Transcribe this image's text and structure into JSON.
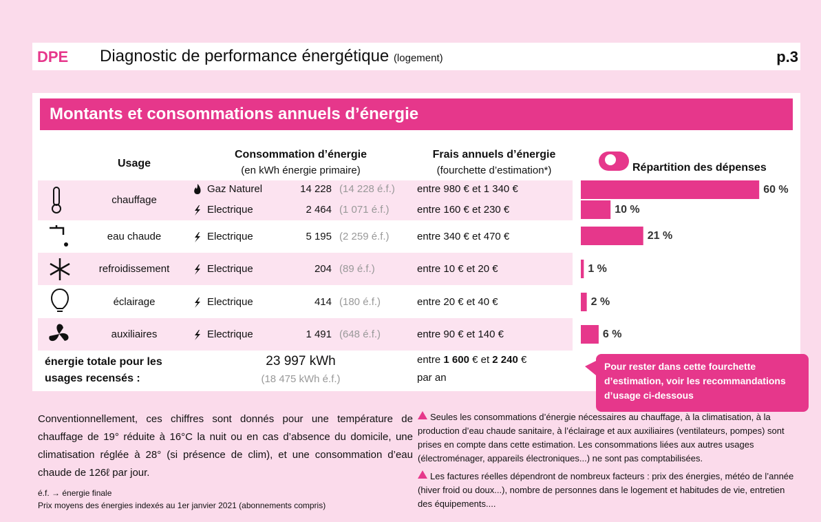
{
  "header": {
    "code": "DPE",
    "title": "Diagnostic de performance énergétique",
    "subtitle": "(logement)",
    "page": "p.3"
  },
  "section_title": "Montants et consommations annuels d’énergie",
  "columns": {
    "usage": "Usage",
    "consumption": "Consommation d’énergie",
    "consumption_unit": "(en kWh énergie primaire)",
    "costs": "Frais annuels d’énergie",
    "costs_note": "(fourchette d’estimation*)",
    "share": "Répartition des dépenses"
  },
  "rows": [
    {
      "usage": "chauffage",
      "lines": [
        {
          "energy": "Gaz Naturel",
          "primary": "14 228",
          "final": "(14 228 é.f.)",
          "cost": "entre 980 € et 1 340 €"
        },
        {
          "energy": "Electrique",
          "primary": "2 464",
          "final": "(1 071 é.f.)",
          "cost": "entre 160 € et 230 €"
        }
      ]
    },
    {
      "usage": "eau chaude",
      "lines": [
        {
          "energy": "Electrique",
          "primary": "5 195",
          "final": "(2 259 é.f.)",
          "cost": "entre 340 € et 470 €"
        }
      ]
    },
    {
      "usage": "refroidissement",
      "lines": [
        {
          "energy": "Electrique",
          "primary": "204",
          "final": "(89 é.f.)",
          "cost": "entre 10 € et 20 €"
        }
      ]
    },
    {
      "usage": "éclairage",
      "lines": [
        {
          "energy": "Electrique",
          "primary": "414",
          "final": "(180 é.f.)",
          "cost": "entre 20 € et 40 €"
        }
      ]
    },
    {
      "usage": "auxiliaires",
      "lines": [
        {
          "energy": "Electrique",
          "primary": "1 491",
          "final": "(648 é.f.)",
          "cost": "entre 90 € et 140 €"
        }
      ]
    }
  ],
  "shares": {
    "values": [
      60,
      10,
      21,
      1,
      2,
      6
    ],
    "value_labels": [
      "60 %",
      "10 %",
      "21 %",
      "1 %",
      "2 %",
      "6 %"
    ]
  },
  "total": {
    "label": "énergie totale pour les usages recensés :",
    "primary": "23 997 kWh",
    "final": "(18 475 kWh é.f.)",
    "cost_prefix": "entre",
    "cost_low": "1 600",
    "cost_mid": "€ et",
    "cost_high": "2 240",
    "cost_suffix": "€",
    "cost_period": "par an"
  },
  "callout": "Pour rester dans cette fourchette d’estimation, voir les recommandations d’usage ci-dessous",
  "conditions": "Conventionnellement, ces chiffres sont donnés pour une température de chauffage de 19° réduite à 16°C la nuit ou en cas d’absence du domicile, une climatisation réglée à 28° (si présence de clim), et une consommation d’eau chaude de 126ℓ par jour.",
  "notes": [
    "é.f. → énergie finale",
    "Prix moyens des énergies indexés au 1er janvier 2021 (abonnements compris)"
  ],
  "warnings": [
    "Seules les consommations d’énergie nécessaires au chauffage, à la climatisation, à la production d’eau chaude sanitaire, à l’éclairage et aux auxiliaires (ventilateurs, pompes) sont prises en compte dans cette estimation. Les consommations liées aux autres usages (électroménager, appareils électroniques...) ne sont pas comptabilisées.",
    "Les factures réelles dépendront de nombreux facteurs : prix des énergies, météo de l’année (hiver froid ou doux...), nombre de personnes dans le logement et habitudes de vie, entretien des équipements...."
  ]
}
